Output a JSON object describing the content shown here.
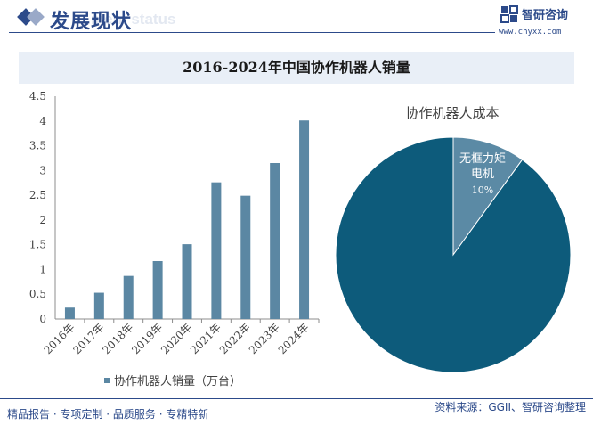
{
  "header": {
    "title": "发展现状",
    "subtitle": "ment status",
    "logo_name": "智研咨询",
    "logo_url": "www.chyxx.com"
  },
  "chart_title": "2016-2024年中国协作机器人销量",
  "chart_data": [
    {
      "type": "bar",
      "categories": [
        "2016年",
        "2017年",
        "2018年",
        "2019年",
        "2020年",
        "2021年",
        "2022年",
        "2023年",
        "2024年"
      ],
      "values": [
        0.23,
        0.53,
        0.87,
        1.17,
        1.51,
        2.76,
        2.49,
        3.15,
        4.01
      ],
      "series": [
        {
          "name": "协作机器人销量（万台）"
        }
      ],
      "yticks": [
        "0",
        "0.5",
        "1",
        "1.5",
        "2",
        "2.5",
        "3",
        "3.5",
        "4",
        "4.5"
      ],
      "ylim": [
        0,
        4.5
      ],
      "color": "#5b87a3",
      "legend_position": "bottom"
    },
    {
      "type": "pie",
      "title": "协作机器人成本",
      "slices": [
        {
          "label": "无框力矩电机",
          "value": 10,
          "value_label": "10%",
          "color": "#5b8aa5"
        },
        {
          "label": "",
          "value": 90,
          "value_label": "",
          "color": "#0d5b7b"
        }
      ]
    }
  ],
  "footer": {
    "left": "精品报告 · 专项定制 · 品质服务 · 专精特新",
    "source": "资料来源：GGII、智研咨询整理"
  }
}
